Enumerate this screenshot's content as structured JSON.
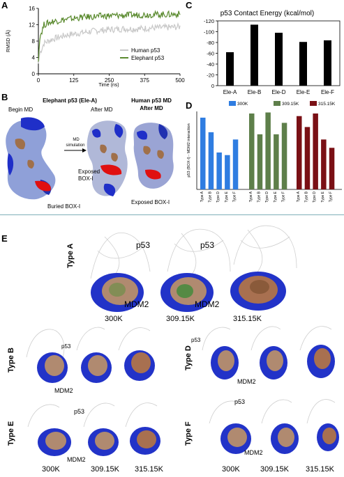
{
  "panels": {
    "a": {
      "letter": "A"
    },
    "b": {
      "letter": "B",
      "title_left": "Elephant p53 (Ele-A)",
      "title_right_1": "Human p53 MD",
      "title_right_2": "After MD",
      "begin": "Begin MD",
      "after": "After MD",
      "md_sim_1": "MD",
      "md_sim_2": "simulation",
      "exposed_1": "Exposed",
      "exposed_2": "BOX-I",
      "buried": "Buried BOX-I",
      "exposed_right": "Exposed BOX-I"
    },
    "c": {
      "letter": "C"
    },
    "d": {
      "letter": "D"
    },
    "e": {
      "letter": "E",
      "p53": "p53",
      "mdm2": "MDM2",
      "temps": [
        "300K",
        "309.15K",
        "315.15K"
      ],
      "types": [
        "Type A",
        "Type B",
        "Type D",
        "Type E",
        "Type F"
      ]
    }
  },
  "colors": {
    "human": "#c8c8c8",
    "elephant": "#5a8a2e",
    "t300": "#2f7de1",
    "t309": "#5e7f4a",
    "t315": "#7a1015",
    "surface_blue": "#1f2fc8",
    "surface_brown": "#a0704a",
    "box_red": "#e01010"
  },
  "chart_data": [
    {
      "id": "rmsd",
      "type": "line",
      "xlabel": "Time (ns)",
      "ylabel": "RMSD (Å)",
      "xlim": [
        0,
        500
      ],
      "ylim": [
        0,
        16
      ],
      "xticks": [
        0,
        125,
        250,
        375,
        500
      ],
      "yticks": [
        0,
        4,
        8,
        12,
        16
      ],
      "legend": "bottom-right",
      "series": [
        {
          "name": "Human p53",
          "x": [
            0,
            5,
            20,
            50,
            100,
            150,
            200,
            250,
            300,
            350,
            400,
            450,
            500
          ],
          "y": [
            2.5,
            5,
            7.5,
            8.5,
            9.5,
            10,
            10.5,
            10.8,
            11,
            11,
            11.2,
            11.3,
            11.5
          ]
        },
        {
          "name": "Elephant p53",
          "x": [
            0,
            5,
            20,
            50,
            100,
            150,
            200,
            250,
            300,
            350,
            400,
            450,
            500
          ],
          "y": [
            3,
            9,
            12,
            12.8,
            13.3,
            13.8,
            14,
            14.2,
            14.3,
            14.4,
            14.5,
            14.5,
            14.6
          ]
        }
      ]
    },
    {
      "id": "contact",
      "type": "bar",
      "title": "p53 Contact Energy (kcal/mol)",
      "categories": [
        "Ele-A",
        "Ele-B",
        "Ele-D",
        "Ele-E",
        "Ele-F"
      ],
      "values": [
        -62,
        -113,
        -98,
        -81,
        -84
      ],
      "ylim": [
        0,
        -120
      ],
      "yticks": [
        0,
        -20,
        -40,
        -60,
        -80,
        -100,
        -120
      ],
      "grid": false
    },
    {
      "id": "box1",
      "type": "bar",
      "ylabel": "p53 (BOX-I) - MDM2 interaction",
      "categories": [
        "Type A",
        "Type B",
        "Type D",
        "Type E",
        "Type F"
      ],
      "ylim": [
        0,
        150
      ],
      "legend": "top",
      "series": [
        {
          "name": "300K",
          "values": [
            138,
            110,
            71,
            66,
            96
          ]
        },
        {
          "name": "309.15K",
          "values": [
            146,
            106,
            148,
            106,
            128
          ]
        },
        {
          "name": "315.15K",
          "values": [
            141,
            120,
            146,
            96,
            80
          ]
        }
      ]
    }
  ]
}
